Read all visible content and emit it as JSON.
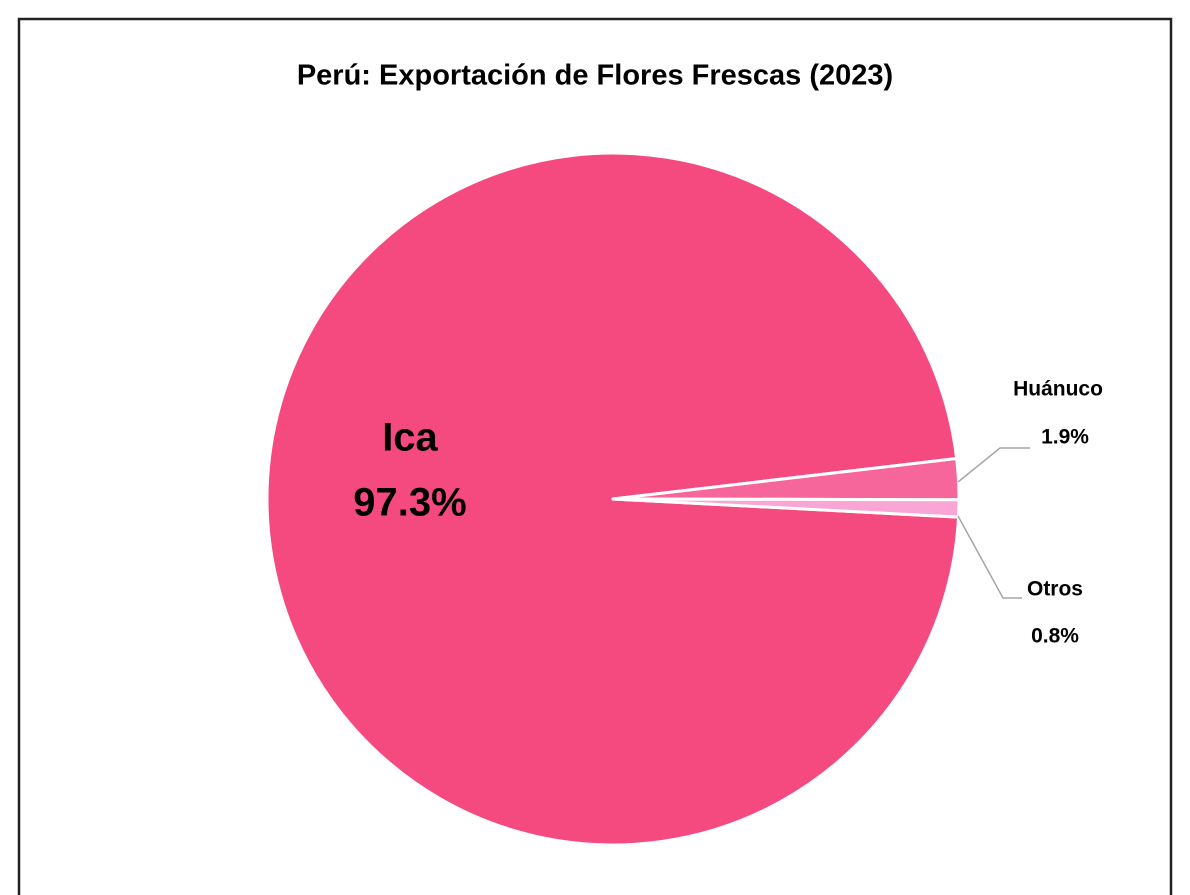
{
  "chart_data": {
    "type": "pie",
    "title": "Perú: Exportación de Flores Frescas (2023)",
    "categories": [
      "Ica",
      "Huánuco",
      "Otros"
    ],
    "values": [
      97.3,
      1.9,
      0.8
    ],
    "value_labels": [
      "97.3%",
      "1.9%",
      "0.8%"
    ],
    "colors": [
      "#f54a80",
      "#f7669a",
      "#f9a6d6"
    ]
  }
}
